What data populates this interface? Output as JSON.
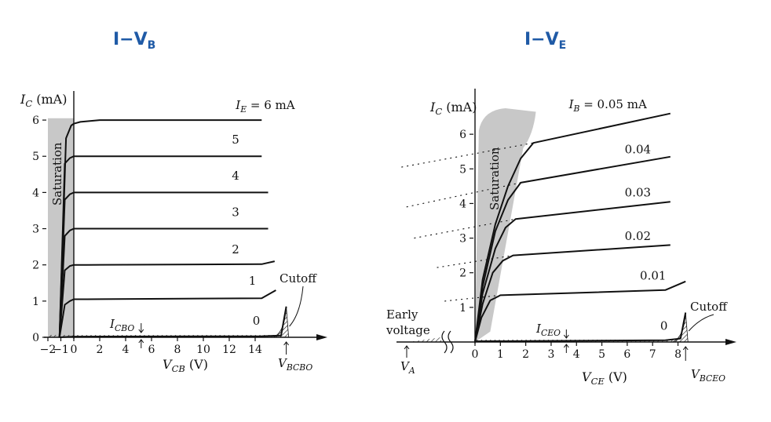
{
  "headings": {
    "left": {
      "main": "I−V",
      "sub": "B"
    },
    "right": {
      "main": "I−V",
      "sub": "E"
    }
  },
  "chart_data": [
    {
      "type": "line",
      "title": "I−V_B",
      "xlabel": {
        "main": "V",
        "sub": "CB",
        "unit": " (V)"
      },
      "ylabel": {
        "main": "I",
        "sub": "C",
        "unit": " (mA)"
      },
      "xlim": [
        -2,
        18
      ],
      "ylim": [
        0,
        6.5
      ],
      "xticks": [
        -2,
        -1,
        0,
        2,
        4,
        6,
        8,
        10,
        12,
        14
      ],
      "xtick_labels": [
        "−2",
        "−1",
        "0",
        "2",
        "4",
        "6",
        "8",
        "10",
        "12",
        "14"
      ],
      "yticks": [
        0,
        1,
        2,
        3,
        4,
        5,
        6
      ],
      "ytick_labels": [
        "0",
        "1",
        "2",
        "3",
        "4",
        "5",
        "6"
      ],
      "series": [
        {
          "name": "I_E = 6 mA",
          "label": "6",
          "x": [
            -1.1,
            -0.6,
            -0.2,
            0,
            0.5,
            2,
            14.5
          ],
          "y": [
            0,
            5.5,
            5.85,
            5.9,
            5.95,
            6.0,
            6.0
          ]
        },
        {
          "name": "5",
          "label": "5",
          "x": [
            -1.1,
            -0.7,
            -0.3,
            0,
            1,
            14.5
          ],
          "y": [
            0,
            4.8,
            4.95,
            5.0,
            5.0,
            5.0
          ]
        },
        {
          "name": "4",
          "label": "4",
          "x": [
            -1.1,
            -0.7,
            -0.3,
            0,
            1,
            15
          ],
          "y": [
            0,
            3.8,
            3.95,
            4.0,
            4.0,
            4.0
          ]
        },
        {
          "name": "3",
          "label": "3",
          "x": [
            -1.1,
            -0.7,
            -0.3,
            0,
            1,
            15
          ],
          "y": [
            0,
            2.8,
            2.95,
            3.0,
            3.0,
            3.0
          ]
        },
        {
          "name": "2",
          "label": "2",
          "x": [
            -1.1,
            -0.7,
            -0.3,
            0,
            1,
            14.5,
            15.5
          ],
          "y": [
            0,
            1.85,
            1.97,
            2.0,
            2.0,
            2.02,
            2.1
          ]
        },
        {
          "name": "1",
          "label": "1",
          "x": [
            -1.1,
            -0.7,
            -0.3,
            0,
            1,
            14.5,
            15.6
          ],
          "y": [
            0,
            0.9,
            1.0,
            1.05,
            1.05,
            1.08,
            1.3
          ]
        },
        {
          "name": "0",
          "label": "0",
          "x": [
            -1.1,
            0,
            14.5,
            16,
            16.4
          ],
          "y": [
            0,
            0.02,
            0.03,
            0.05,
            0.85
          ]
        }
      ],
      "series_label_positions": [
        [
          12.5,
          6.3
        ],
        [
          12.2,
          5.35
        ],
        [
          12.2,
          4.35
        ],
        [
          12.2,
          3.35
        ],
        [
          12.2,
          2.32
        ],
        [
          13.5,
          1.45
        ],
        [
          13.8,
          0.35
        ]
      ],
      "series_label_prefix": {
        "main": "I",
        "sub": "E",
        "rest": " = ",
        "unit": " mA"
      },
      "saturation_label": "Saturation",
      "cutoff_label": "Cutoff",
      "icbo_label": {
        "main": "I",
        "sub": "CBO"
      },
      "vbcbo_label": {
        "main": "V",
        "sub": "BCBO"
      }
    },
    {
      "type": "line",
      "title": "I−V_E",
      "xlabel": {
        "main": "V",
        "sub": "CE",
        "unit": " (V)"
      },
      "ylabel": {
        "main": "I",
        "sub": "C",
        "unit": " (mA)"
      },
      "xlim": [
        0,
        9.5
      ],
      "ylim": [
        0,
        7
      ],
      "xticks": [
        0,
        1,
        2,
        3,
        4,
        5,
        6,
        7,
        8
      ],
      "xtick_labels": [
        "0",
        "1",
        "2",
        "3",
        "4",
        "5",
        "6",
        "7",
        "8"
      ],
      "yticks": [
        1,
        2,
        3,
        4,
        5,
        6
      ],
      "ytick_labels": [
        "1",
        "2",
        "3",
        "4",
        "5",
        "6"
      ],
      "series": [
        {
          "name": "I_B = 0.05 mA",
          "label": "0.05",
          "x": [
            0,
            0.3,
            0.8,
            1.3,
            1.8,
            2.3,
            7.7
          ],
          "y": [
            0,
            1.8,
            3.4,
            4.5,
            5.3,
            5.75,
            6.6
          ]
        },
        {
          "name": "0.04",
          "label": "0.04",
          "x": [
            0,
            0.3,
            0.8,
            1.3,
            1.8,
            7.7
          ],
          "y": [
            0,
            1.6,
            3.2,
            4.1,
            4.6,
            5.35
          ]
        },
        {
          "name": "0.03",
          "label": "0.03",
          "x": [
            0,
            0.3,
            0.8,
            1.2,
            1.6,
            7.7
          ],
          "y": [
            0,
            1.4,
            2.7,
            3.3,
            3.55,
            4.05
          ]
        },
        {
          "name": "0.02",
          "label": "0.02",
          "x": [
            0,
            0.3,
            0.7,
            1.1,
            1.5,
            7.7
          ],
          "y": [
            0,
            1.1,
            2.0,
            2.35,
            2.5,
            2.8
          ]
        },
        {
          "name": "0.01",
          "label": "0.01",
          "x": [
            0,
            0.25,
            0.6,
            1.0,
            7.5,
            8.3
          ],
          "y": [
            0,
            0.7,
            1.2,
            1.35,
            1.5,
            1.75
          ]
        },
        {
          "name": "0",
          "label": "0",
          "x": [
            0,
            7.5,
            8.1,
            8.3
          ],
          "y": [
            0.02,
            0.05,
            0.1,
            0.85
          ]
        }
      ],
      "series_label_positions": [
        [
          3.7,
          6.75
        ],
        [
          5.9,
          5.45
        ],
        [
          5.9,
          4.2
        ],
        [
          5.9,
          2.95
        ],
        [
          6.5,
          1.8
        ],
        [
          7.3,
          0.35
        ]
      ],
      "series_label_prefix": {
        "main": "I",
        "sub": "B",
        "rest": " = ",
        "unit": " mA"
      },
      "saturation_label": "Saturation",
      "cutoff_label": "Cutoff",
      "early_label_1": "Early",
      "early_label_2": "voltage",
      "va_label": {
        "main": "V",
        "sub": "A"
      },
      "iceo_label": {
        "main": "I",
        "sub": "CEO"
      },
      "vbceo_label": {
        "main": "V",
        "sub": "BCEO"
      }
    }
  ]
}
